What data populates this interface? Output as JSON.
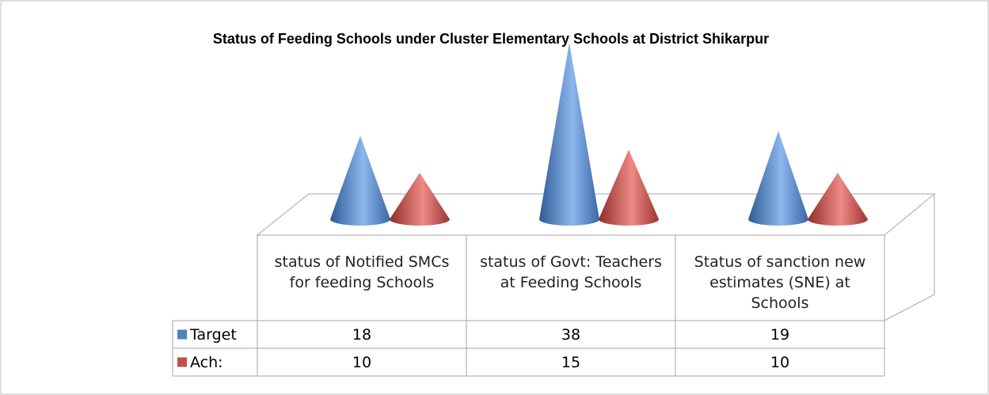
{
  "chart_data": {
    "type": "cone",
    "title": "Status of Feeding Schools under  Cluster Elementary Schools at District Shikarpur",
    "categories": [
      "status of Notified SMCs for feeding Schools",
      "status of Govt: Teachers at Feeding Schools",
      "Status of sanction new estimates (SNE) at Schools"
    ],
    "series": [
      {
        "name": "Target",
        "color": "#4f81bd",
        "values": [
          18,
          38,
          19
        ]
      },
      {
        "name": "Ach:",
        "color": "#c0504d",
        "values": [
          10,
          15,
          10
        ]
      }
    ],
    "legend": "table"
  }
}
